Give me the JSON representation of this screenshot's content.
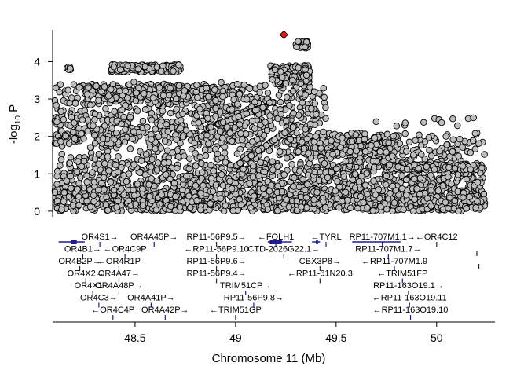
{
  "chart_data": {
    "type": "scatter",
    "title": "",
    "ylabel_main": "-log",
    "ylabel_sub": "10",
    "ylabel_tail": " P",
    "xlabel": "Chromosome 11 (Mb)",
    "xlim": [
      48.09,
      50.29
    ],
    "ylim": [
      -0.15,
      4.85
    ],
    "x_ticks": [
      48.5,
      49,
      49.5,
      50
    ],
    "x_tick_labels": [
      "48.5",
      "49",
      "49.5",
      "50"
    ],
    "y_ticks": [
      0,
      1,
      2,
      3,
      4
    ],
    "y_tick_labels": [
      "0",
      "1",
      "2",
      "3",
      "4"
    ],
    "grid": false,
    "point_color": "#bebebe",
    "lead_color": "#e8161b",
    "gene_color": "#1c1c8f",
    "lead_snp": {
      "x": 49.24,
      "y": 4.72
    },
    "genes": [
      {
        "label": "OR4S1→",
        "x": 48.325,
        "row": 0
      },
      {
        "label": "OR4A45P→",
        "x": 48.595,
        "row": 0
      },
      {
        "label": "RP11-56P9.5→",
        "x": 48.905,
        "row": 0
      },
      {
        "label": "←FOLH1",
        "x": 49.2,
        "row": 0
      },
      {
        "label": "←TYRL",
        "x": 49.45,
        "row": 0
      },
      {
        "label": "RP11-707M1.1→",
        "x": 49.73,
        "row": 0
      },
      {
        "label": "←OR4C12",
        "x": 50.0,
        "row": 0
      },
      {
        "label": "OR4B1→",
        "x": 48.24,
        "row": 1
      },
      {
        "label": "←OR4C9P",
        "x": 48.45,
        "row": 1
      },
      {
        "label": "←RP11-56P9.10",
        "x": 48.905,
        "row": 1
      },
      {
        "label": "CTD-2026G22.1→",
        "x": 49.24,
        "row": 1
      },
      {
        "label": "RP11-707M1.7→",
        "x": 49.76,
        "row": 1
      },
      {
        "label": "OR4B2P→",
        "x": 48.225,
        "row": 2
      },
      {
        "label": "←OR4R1P",
        "x": 48.42,
        "row": 2
      },
      {
        "label": "RP11-56P9.6→",
        "x": 48.905,
        "row": 2
      },
      {
        "label": "CBX3P8→",
        "x": 49.42,
        "row": 2
      },
      {
        "label": "←RP11-707M1.9",
        "x": 49.79,
        "row": 2
      },
      {
        "label": "OR4X2→",
        "x": 48.255,
        "row": 3
      },
      {
        "label": "OR4A47→",
        "x": 48.42,
        "row": 3
      },
      {
        "label": "RP11-56P9.4→",
        "x": 48.905,
        "row": 3
      },
      {
        "label": "←RP11-61N20.3",
        "x": 49.42,
        "row": 3
      },
      {
        "label": "←TRIM51FP",
        "x": 49.83,
        "row": 3
      },
      {
        "label": "OR4X1→",
        "x": 48.29,
        "row": 4
      },
      {
        "label": "OR4A48P→",
        "x": 48.42,
        "row": 4
      },
      {
        "label": "TRIM51CP→",
        "x": 49.05,
        "row": 4
      },
      {
        "label": "RP11-163O19.1→",
        "x": 49.86,
        "row": 4
      },
      {
        "label": "OR4C3→",
        "x": 48.32,
        "row": 5
      },
      {
        "label": "OR4A41P→",
        "x": 48.58,
        "row": 5
      },
      {
        "label": "RP11-56P9.8→",
        "x": 49.09,
        "row": 5
      },
      {
        "label": "←RP11-163O19.11",
        "x": 49.865,
        "row": 5
      },
      {
        "label": "←OR4C4P",
        "x": 48.39,
        "row": 6
      },
      {
        "label": "OR4A42P→",
        "x": 48.65,
        "row": 6
      },
      {
        "label": "←TRIM51GP",
        "x": 49.0,
        "row": 6
      },
      {
        "label": "←RP11-163O19.10",
        "x": 49.87,
        "row": 6
      }
    ]
  }
}
